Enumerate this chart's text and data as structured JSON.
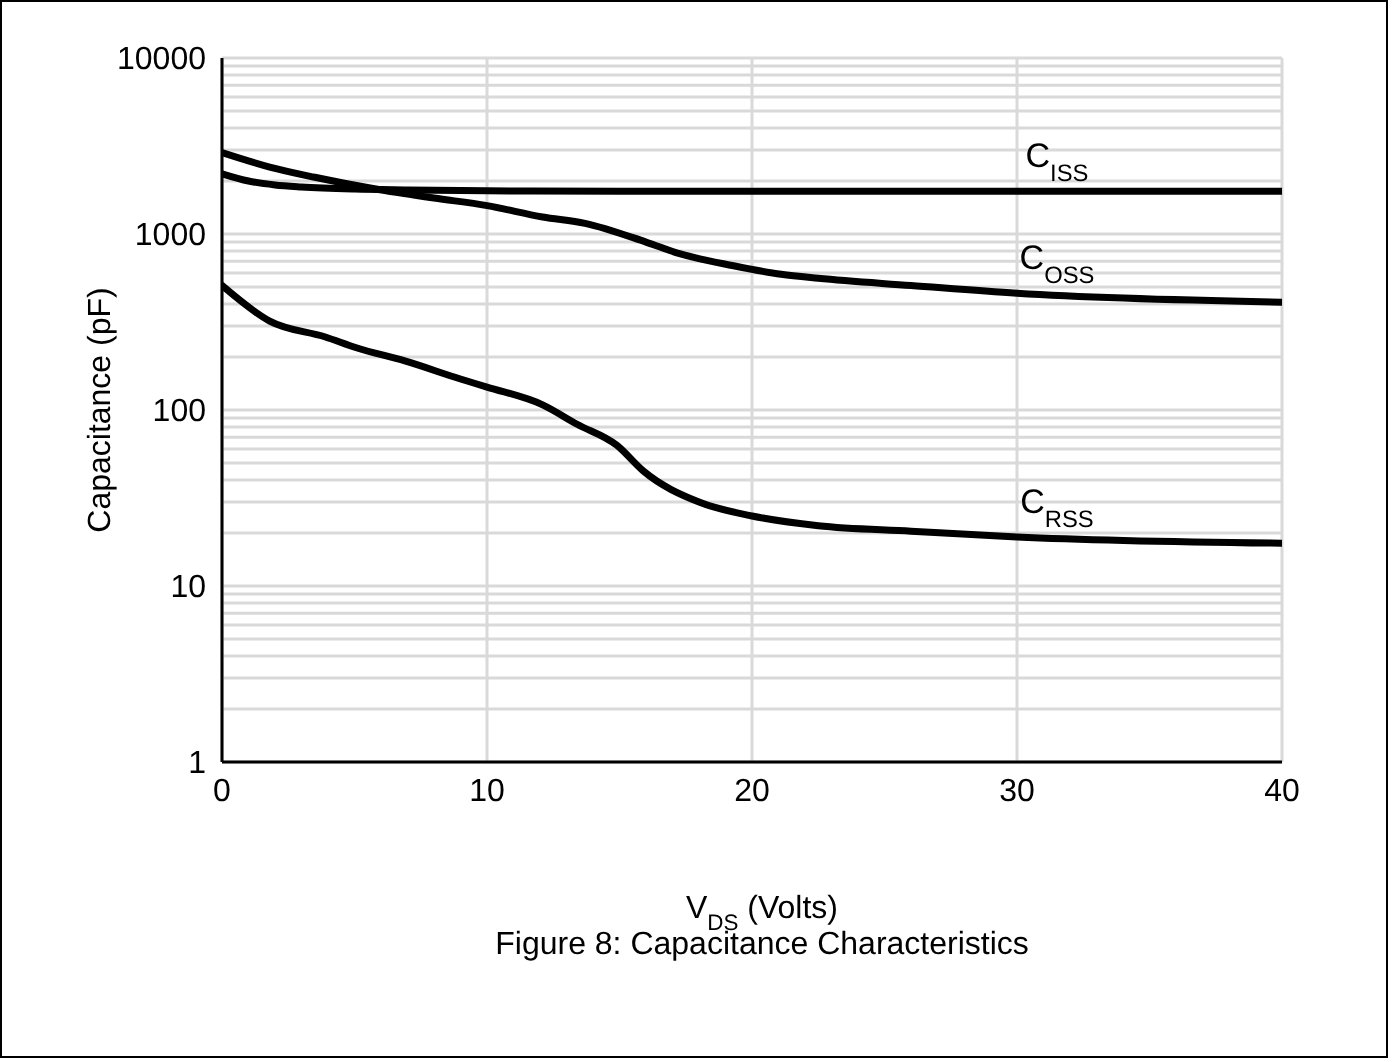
{
  "chart_data": {
    "type": "line",
    "xlabel": "V$_{DS}$ (Volts)",
    "ylabel": "Capacitance (pF)",
    "annotations": [
      "Figure 8: Capacitance Characteristics"
    ],
    "log": "y",
    "grid": true,
    "marker": "none",
    "line_style": "solid",
    "xlim": [
      0,
      40
    ],
    "xticks": [
      0,
      10,
      20,
      30,
      40
    ],
    "ylim": [
      1,
      10000
    ],
    "yticks": [
      1,
      10,
      100,
      1000,
      10000
    ],
    "series": [
      {
        "name": "C$_{ISS}$",
        "color": "#000000",
        "x": [
          0,
          1,
          2,
          3,
          5,
          7,
          10,
          15,
          20,
          30,
          40
        ],
        "values": [
          2200,
          2000,
          1900,
          1850,
          1800,
          1780,
          1760,
          1750,
          1750,
          1750,
          1750
        ]
      },
      {
        "name": "C$_{OSS}$",
        "color": "#000000",
        "x": [
          0,
          1.8,
          3.5,
          5.8,
          8,
          10,
          12.1,
          13.7,
          16,
          17.3,
          19.3,
          21.1,
          22.5,
          26,
          30,
          40
        ],
        "values": [
          2900,
          2400,
          2100,
          1800,
          1600,
          1450,
          1250,
          1150,
          900,
          770,
          660,
          590,
          560,
          510,
          460,
          410
        ]
      },
      {
        "name": "C$_{RSS}$",
        "color": "#000000",
        "x": [
          0,
          1.8,
          3.9,
          5.1,
          6.9,
          9,
          10,
          12.1,
          13.4,
          14.9,
          15.9,
          18,
          20,
          22.5,
          26,
          30,
          40
        ],
        "values": [
          510,
          320,
          260,
          225,
          190,
          150,
          135,
          107,
          83,
          63,
          45,
          30,
          25,
          22,
          20.5,
          19,
          17.5
        ]
      }
    ]
  }
}
